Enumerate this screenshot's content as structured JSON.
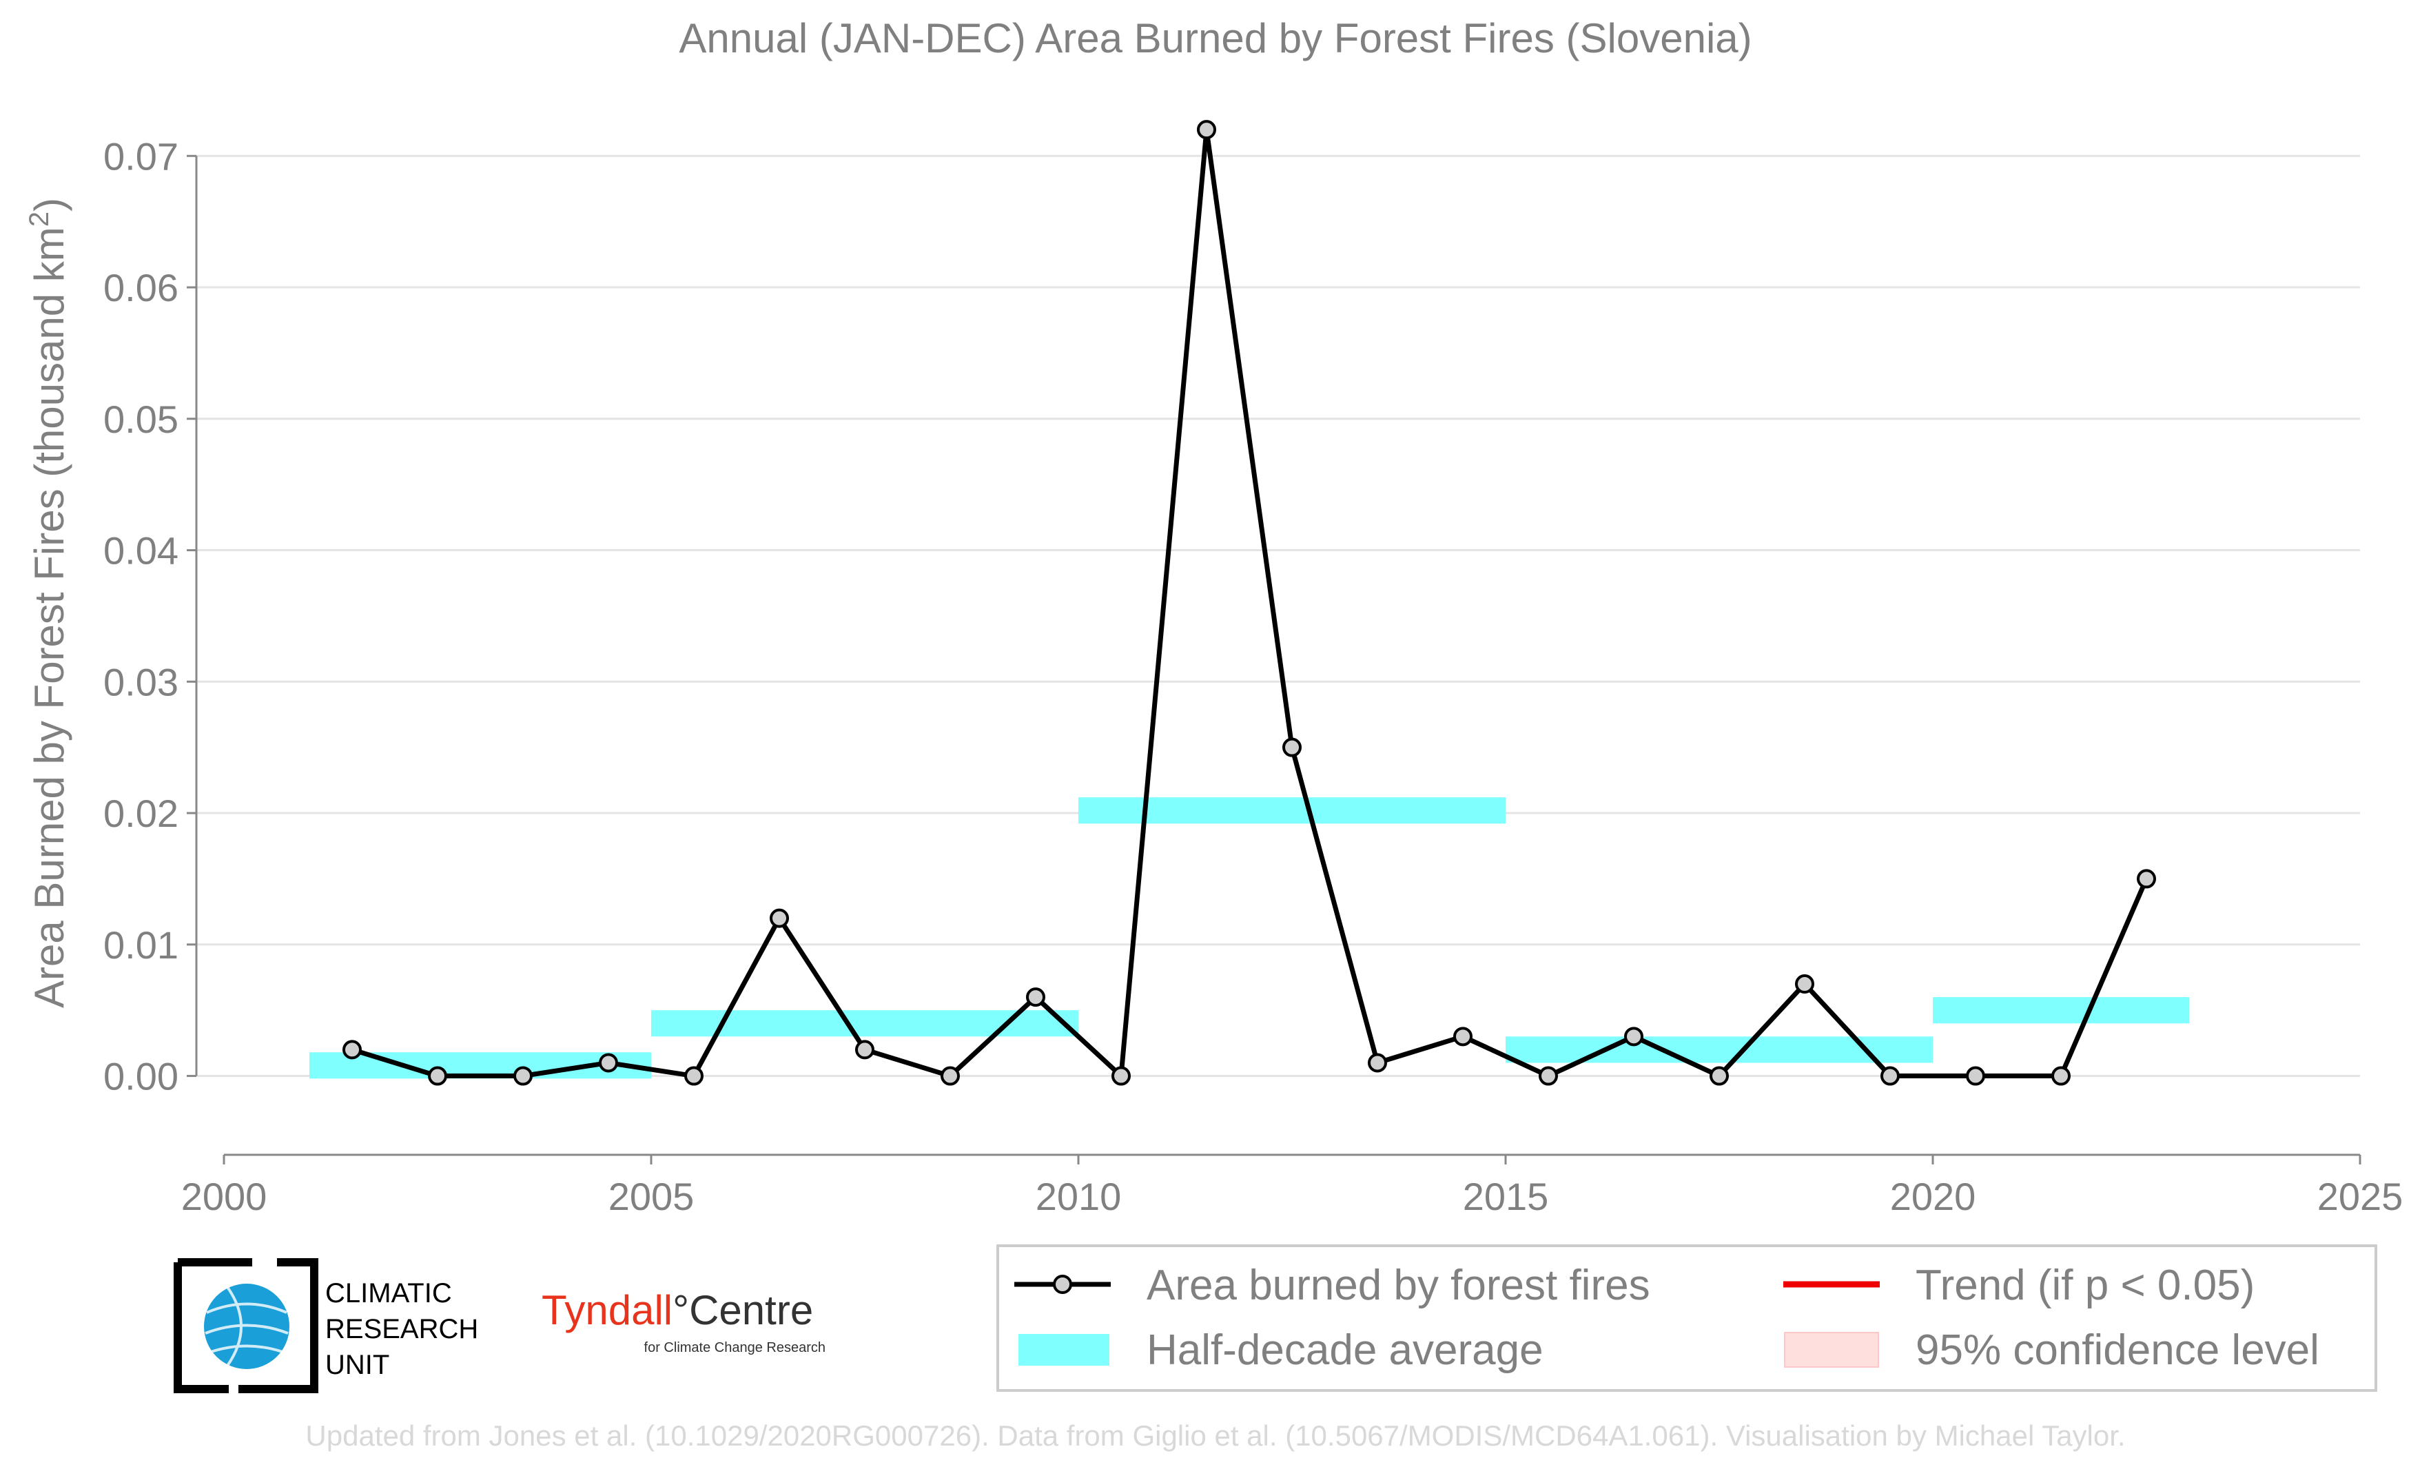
{
  "chart_data": {
    "type": "line",
    "title": "Annual (JAN-DEC) Area Burned by Forest Fires (Slovenia)",
    "ylabel_main": "Area Burned by Forest Fires (thousand km",
    "ylabel_sup": "2",
    "ylabel_close": ")",
    "xlim": [
      2000,
      2025
    ],
    "ylim": [
      -0.006,
      0.074
    ],
    "xticks": [
      "2000",
      "2005",
      "2010",
      "2015",
      "2020",
      "2025"
    ],
    "yticks": [
      "0.00",
      "0.01",
      "0.02",
      "0.03",
      "0.04",
      "0.05",
      "0.06",
      "0.07"
    ],
    "grid": true,
    "series": [
      {
        "name": "Area burned by forest fires",
        "color": "#000000",
        "marker_fill": "#d0d0d0",
        "x": [
          2001.5,
          2002.5,
          2003.5,
          2004.5,
          2005.5,
          2006.5,
          2007.5,
          2008.5,
          2009.5,
          2010.5,
          2011.5,
          2012.5,
          2013.5,
          2014.5,
          2015.5,
          2016.5,
          2017.5,
          2018.5,
          2019.5,
          2020.5,
          2021.5,
          2022.5
        ],
        "y": [
          0.002,
          0.0,
          0.0,
          0.001,
          0.0,
          0.012,
          0.002,
          0.0,
          0.006,
          0.0,
          0.072,
          0.025,
          0.001,
          0.003,
          0.0,
          0.003,
          0.0,
          0.007,
          0.0,
          0.0,
          0.0,
          0.015
        ]
      }
    ],
    "half_decade_average": {
      "name": "Half-decade average",
      "color": "#80ffff",
      "bands": [
        {
          "x0": 2001,
          "x1": 2005,
          "y": 0.0008
        },
        {
          "x0": 2005,
          "x1": 2010,
          "y": 0.004
        },
        {
          "x0": 2010,
          "x1": 2015,
          "y": 0.0202
        },
        {
          "x0": 2015,
          "x1": 2020,
          "y": 0.002
        },
        {
          "x0": 2020,
          "x1": 2023,
          "y": 0.005
        }
      ]
    },
    "legend": {
      "placement": "bottom-right",
      "entries": [
        {
          "key": "line",
          "label": "Area burned by forest fires"
        },
        {
          "key": "trend",
          "label": "Trend (if p < 0.05)",
          "color": "#ee0000"
        },
        {
          "key": "band",
          "label": "Half-decade average"
        },
        {
          "key": "ci",
          "label": "95% confidence level",
          "color": "#ffdede"
        }
      ]
    }
  },
  "logos": {
    "cru_line1": "CLIMATIC",
    "cru_line2": "RESEARCH",
    "cru_line3": "UNIT",
    "tyndall_part1": "Tyndall",
    "tyndall_part2": "°Centre",
    "tyndall_sub": "for Climate Change Research"
  },
  "credit": "Updated from Jones et al. (10.1029/2020RG000726). Data from Giglio et al. (10.5067/MODIS/MCD64A1.061). Visualisation by Michael Taylor."
}
